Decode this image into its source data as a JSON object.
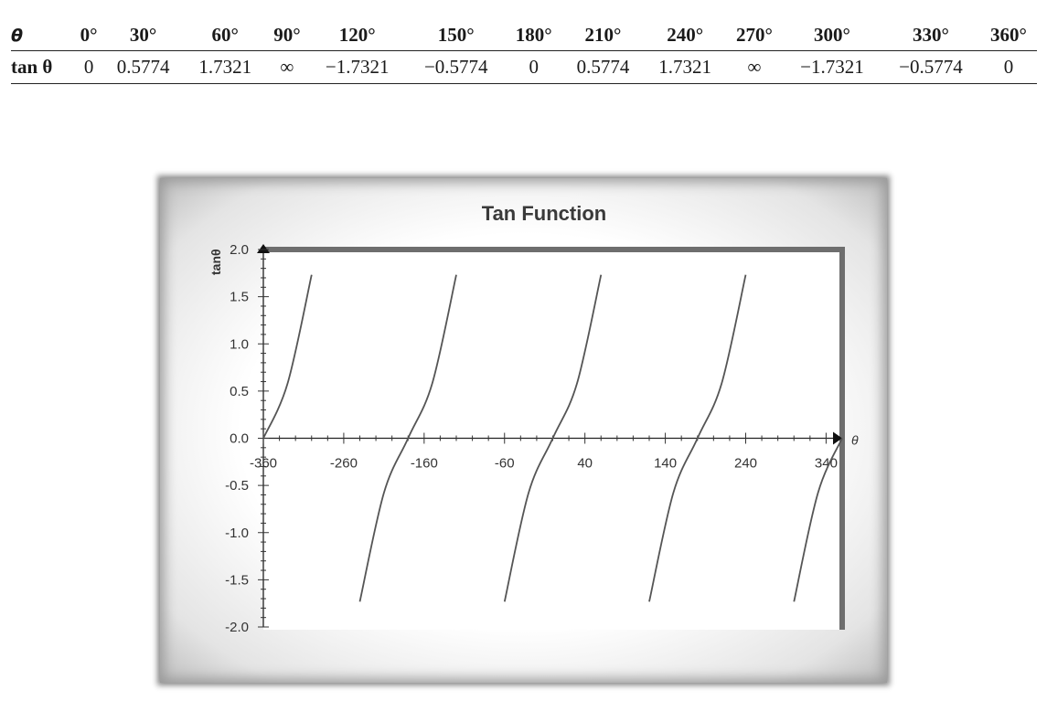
{
  "table": {
    "header_label": "θ",
    "row_label": "tan θ",
    "headers": [
      "0°",
      "30°",
      "60°",
      "90°",
      "120°",
      "150°",
      "180°",
      "210°",
      "240°",
      "270°",
      "300°",
      "330°",
      "360°"
    ],
    "values": [
      "0",
      "0.5774",
      "1.7321",
      "∞",
      "−1.7321",
      "−0.5774",
      "0",
      "0.5774",
      "1.7321",
      "∞",
      "−1.7321",
      "−0.5774",
      "0"
    ]
  },
  "chart_data": {
    "type": "line",
    "title": "Tan Function",
    "xlabel": "θ",
    "ylabel": "tanθ",
    "xlim": [
      -360,
      360
    ],
    "ylim": [
      -2.0,
      2.0
    ],
    "x_ticks": [
      -360,
      -260,
      -160,
      -60,
      40,
      140,
      240,
      340
    ],
    "y_ticks": [
      "2.0",
      "1.5",
      "1.0",
      "0.5",
      "0.0",
      "-0.5",
      "-1.0",
      "-1.5",
      "-2.0"
    ],
    "y_tick_values": [
      2.0,
      1.5,
      1.0,
      0.5,
      0.0,
      -0.5,
      -1.0,
      -1.5,
      -2.0
    ],
    "grid": false,
    "legend": "none",
    "line_color": "#555555",
    "series": [
      {
        "x": [
          -360,
          -330,
          -300,
          -240,
          -210,
          -180,
          -150,
          -120,
          -60,
          -30,
          0,
          30,
          60,
          120,
          150,
          180,
          210,
          240,
          300,
          330,
          360
        ],
        "y": [
          0,
          0.5774,
          1.7321,
          -1.7321,
          -0.5774,
          0,
          0.5774,
          1.7321,
          -1.7321,
          -0.5774,
          0,
          0.5774,
          1.7321,
          -1.7321,
          -0.5774,
          0,
          0.5774,
          1.7321,
          -1.7321,
          -0.5774,
          0
        ]
      }
    ]
  }
}
